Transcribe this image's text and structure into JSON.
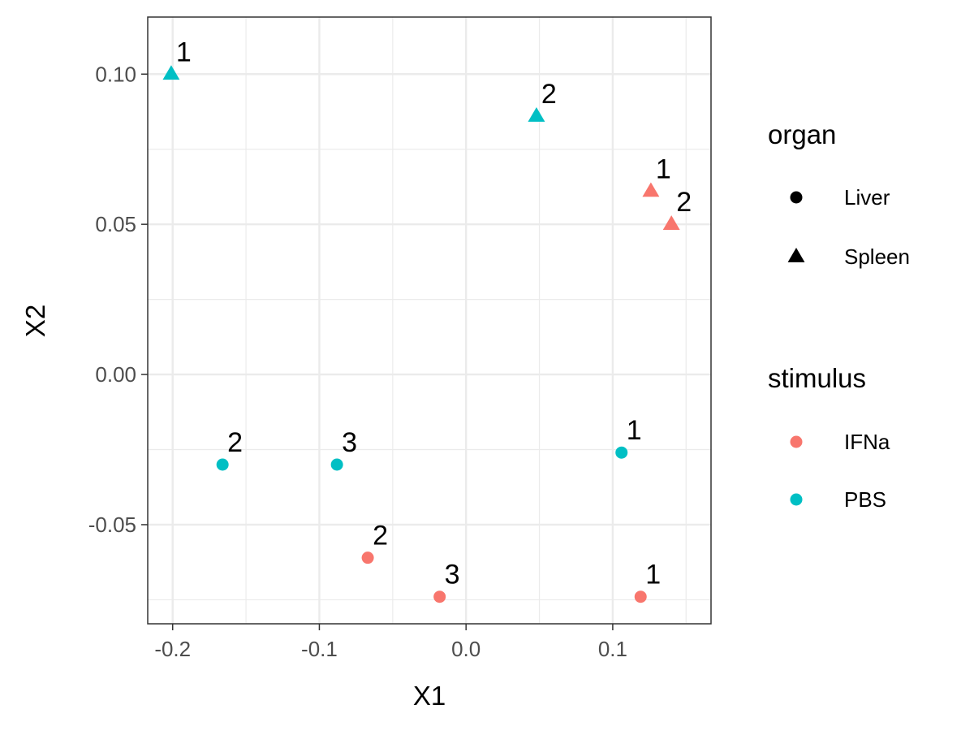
{
  "chart_data": {
    "type": "scatter",
    "title": "",
    "xlabel": "X1",
    "ylabel": "X2",
    "xlim": [
      -0.217,
      0.167
    ],
    "ylim": [
      -0.083,
      0.119
    ],
    "x_ticks": [
      -0.2,
      -0.1,
      0.0,
      0.1
    ],
    "x_tick_labels": [
      "-0.2",
      "-0.1",
      "0.0",
      "0.1"
    ],
    "y_ticks": [
      -0.05,
      0.0,
      0.05,
      0.1
    ],
    "y_tick_labels": [
      "-0.05",
      "0.00",
      "0.05",
      "0.10"
    ],
    "grid": true,
    "legend_placement": "right",
    "legends": [
      {
        "title": "organ",
        "items": [
          {
            "label": "Liver",
            "shape": "circle"
          },
          {
            "label": "Spleen",
            "shape": "triangle"
          }
        ]
      },
      {
        "title": "stimulus",
        "items": [
          {
            "label": "IFNa",
            "color": "#F8766D"
          },
          {
            "label": "PBS",
            "color": "#00BFC4"
          }
        ]
      }
    ],
    "colors": {
      "IFNa": "#F8766D",
      "PBS": "#00BFC4"
    },
    "points": [
      {
        "x": -0.201,
        "y": 0.1,
        "organ": "Spleen",
        "stimulus": "PBS",
        "label": "1"
      },
      {
        "x": 0.048,
        "y": 0.086,
        "organ": "Spleen",
        "stimulus": "PBS",
        "label": "2"
      },
      {
        "x": 0.126,
        "y": 0.061,
        "organ": "Spleen",
        "stimulus": "IFNa",
        "label": "1"
      },
      {
        "x": 0.14,
        "y": 0.05,
        "organ": "Spleen",
        "stimulus": "IFNa",
        "label": "2"
      },
      {
        "x": -0.166,
        "y": -0.03,
        "organ": "Liver",
        "stimulus": "PBS",
        "label": "2"
      },
      {
        "x": -0.088,
        "y": -0.03,
        "organ": "Liver",
        "stimulus": "PBS",
        "label": "3"
      },
      {
        "x": 0.106,
        "y": -0.026,
        "organ": "Liver",
        "stimulus": "PBS",
        "label": "1"
      },
      {
        "x": -0.067,
        "y": -0.061,
        "organ": "Liver",
        "stimulus": "IFNa",
        "label": "2"
      },
      {
        "x": -0.018,
        "y": -0.074,
        "organ": "Liver",
        "stimulus": "IFNa",
        "label": "3"
      },
      {
        "x": 0.119,
        "y": -0.074,
        "organ": "Liver",
        "stimulus": "IFNa",
        "label": "1"
      }
    ]
  }
}
